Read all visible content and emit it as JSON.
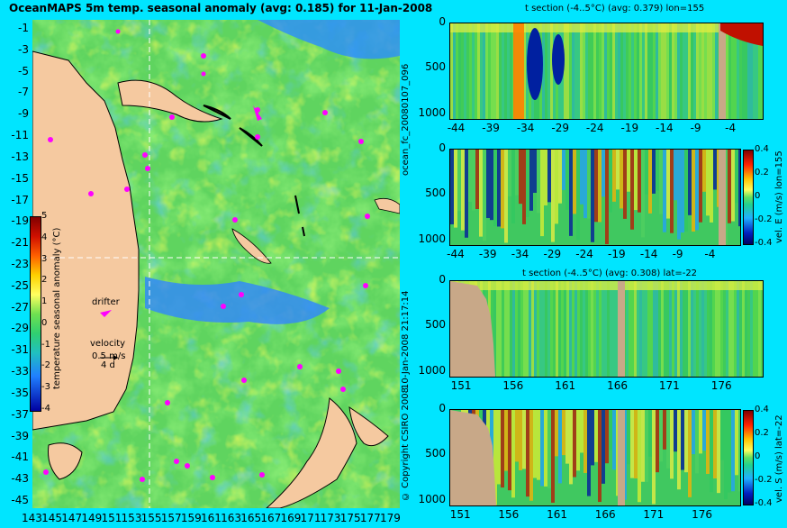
{
  "main_title": "OceanMAPS 5m temp. seasonal anomaly (avg: 0.185) for 11-Jan-2008",
  "side_label": "ocean_fc_20080107_096",
  "timestamp_label": "10-Jan-2008 21:17:14",
  "copyright": "© Copyright CSIRO 2008",
  "map": {
    "drifter_label": "drifter",
    "velocity_label": "velocity",
    "velocity_value": "0.5 m/s",
    "velocity_time": "4 d",
    "colorbar_label": "temperature seasonal anomaly (°C)",
    "colorbar_ticks": [
      "5",
      "4",
      "3",
      "2",
      "1",
      "0",
      "-1",
      "-2",
      "-3",
      "-4"
    ],
    "lat_ticks": [
      "-1",
      "-3",
      "-5",
      "-7",
      "-9",
      "-11",
      "-13",
      "-15",
      "-17",
      "-19",
      "-21",
      "-23",
      "-25",
      "-27",
      "-29",
      "-31",
      "-33",
      "-35",
      "-37",
      "-39",
      "-41",
      "-43",
      "-45"
    ],
    "lon_ticks": [
      "143",
      "145",
      "147",
      "149",
      "151",
      "153",
      "155",
      "157",
      "159",
      "161",
      "163",
      "165",
      "167",
      "169",
      "171",
      "173",
      "175",
      "177",
      "179"
    ]
  },
  "colors": {
    "background": "#00e5ff",
    "land": "#f5c9a0",
    "section_land": "#c8a888",
    "drifter": "#ff00ff",
    "ocean_base": "#5fd45f"
  },
  "chart_data": [
    {
      "type": "heatmap",
      "title": "t section (-4..5°C) (avg: 0.379) lon=155",
      "x_ticks": [
        "-44",
        "-39",
        "-34",
        "-29",
        "-24",
        "-19",
        "-14",
        "-9",
        "-4"
      ],
      "y_ticks": [
        "0",
        "500",
        "1000"
      ],
      "xlim": [
        -45,
        0
      ],
      "ylim": [
        1050,
        0
      ]
    },
    {
      "type": "heatmap",
      "title": "",
      "colorbar_label": "vel. E (m/s) lon=155",
      "colorbar_ticks": [
        "0.4",
        "0.2",
        "0",
        "-0.2",
        "-0.4"
      ],
      "x_ticks": [
        "-44",
        "-39",
        "-34",
        "-29",
        "-24",
        "-19",
        "-14",
        "-9",
        "-4"
      ],
      "y_ticks": [
        "0",
        "500",
        "1000"
      ],
      "xlim": [
        -45,
        0
      ],
      "ylim": [
        1050,
        0
      ]
    },
    {
      "type": "heatmap",
      "title": "t section (-4..5°C) (avg: 0.308) lat=-22",
      "x_ticks": [
        "151",
        "156",
        "161",
        "166",
        "171",
        "176"
      ],
      "y_ticks": [
        "0",
        "500",
        "1000"
      ],
      "xlim": [
        150,
        180
      ],
      "ylim": [
        1050,
        0
      ]
    },
    {
      "type": "heatmap",
      "title": "",
      "colorbar_label": "vel. S (m/s) lat=-22",
      "colorbar_ticks": [
        "0.4",
        "0.2",
        "0",
        "-0.2",
        "-0.4"
      ],
      "x_ticks": [
        "151",
        "156",
        "161",
        "166",
        "171",
        "176"
      ],
      "y_ticks": [
        "0",
        "500",
        "1000"
      ],
      "xlim": [
        150,
        180
      ],
      "ylim": [
        1050,
        0
      ]
    }
  ]
}
